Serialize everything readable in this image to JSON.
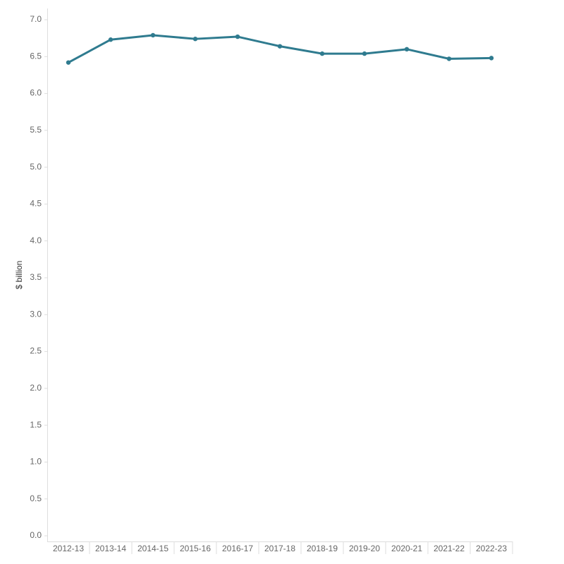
{
  "chart_data": {
    "type": "line",
    "y_label": "$ billion",
    "categories": [
      "2012-13",
      "2013-14",
      "2014-15",
      "2015-16",
      "2016-17",
      "2017-18",
      "2018-19",
      "2019-20",
      "2020-21",
      "2021-22",
      "2022-23"
    ],
    "series": [
      {
        "color": "#2f7b8f",
        "values": [
          6.42,
          6.73,
          6.79,
          6.74,
          6.77,
          6.64,
          6.54,
          6.54,
          6.6,
          6.47,
          6.48
        ]
      }
    ],
    "ylim": [
      0,
      7
    ],
    "yticks": [
      {
        "value": 0,
        "label": "0.0"
      },
      0.5,
      {
        "value": 1,
        "label": "1.0"
      },
      1.5,
      {
        "value": 2,
        "label": "2.0"
      },
      2.5,
      {
        "value": 3,
        "label": "3.0"
      },
      3.5,
      {
        "value": 4,
        "label": "4.0"
      },
      4.5,
      {
        "value": 5,
        "label": "5.0"
      },
      5.5,
      {
        "value": 6,
        "label": "6.0"
      },
      6.5,
      {
        "value": 7,
        "label": "7.0"
      }
    ],
    "grid": false
  }
}
